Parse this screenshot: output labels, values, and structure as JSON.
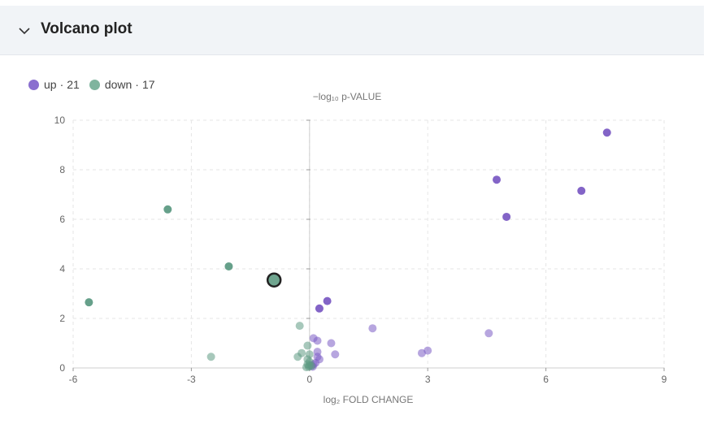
{
  "panel": {
    "title": "Volcano plot",
    "toggle_icon": "chevron-down-icon"
  },
  "legend": [
    {
      "name": "up",
      "count": "21",
      "color": "#8a6fcf"
    },
    {
      "name": "down",
      "count": "17",
      "color": "#6fa58f"
    }
  ],
  "chart_data": {
    "type": "scatter",
    "ylabel": "−log₁₀ p-VALUE",
    "xlabel": "log₂ FOLD CHANGE",
    "xlim": [
      -6,
      9
    ],
    "ylim": [
      0,
      10
    ],
    "xticks": [
      -6,
      -3,
      0,
      3,
      6,
      9
    ],
    "yticks": [
      0,
      2,
      4,
      6,
      8,
      10
    ],
    "grid": true,
    "legend_position": "top-left",
    "highlighted_point": {
      "x": -0.9,
      "y": 3.55
    },
    "series": [
      {
        "name": "up",
        "color": "#7c5cc4",
        "points": [
          {
            "x": 7.55,
            "y": 9.5,
            "sig": true
          },
          {
            "x": 4.75,
            "y": 7.6,
            "sig": true
          },
          {
            "x": 6.9,
            "y": 7.15,
            "sig": true
          },
          {
            "x": 5.0,
            "y": 6.1,
            "sig": true
          },
          {
            "x": 0.45,
            "y": 2.7,
            "sig": true
          },
          {
            "x": 0.25,
            "y": 2.4,
            "sig": true
          },
          {
            "x": 1.6,
            "y": 1.6,
            "sig": false
          },
          {
            "x": 4.55,
            "y": 1.4,
            "sig": false
          },
          {
            "x": 0.1,
            "y": 1.2,
            "sig": false
          },
          {
            "x": 0.2,
            "y": 1.1,
            "sig": false
          },
          {
            "x": 0.55,
            "y": 1.0,
            "sig": false
          },
          {
            "x": 3.0,
            "y": 0.7,
            "sig": false
          },
          {
            "x": 2.85,
            "y": 0.6,
            "sig": false
          },
          {
            "x": 0.2,
            "y": 0.65,
            "sig": false
          },
          {
            "x": 0.65,
            "y": 0.55,
            "sig": false
          },
          {
            "x": 0.2,
            "y": 0.45,
            "sig": false
          },
          {
            "x": 0.25,
            "y": 0.35,
            "sig": false
          },
          {
            "x": 0.15,
            "y": 0.2,
            "sig": false
          },
          {
            "x": 0.1,
            "y": 0.15,
            "sig": false
          },
          {
            "x": 0.05,
            "y": 0.1,
            "sig": false
          },
          {
            "x": 0.08,
            "y": 0.05,
            "sig": false
          }
        ]
      },
      {
        "name": "down",
        "color": "#5e9b84",
        "points": [
          {
            "x": -3.6,
            "y": 6.4,
            "sig": true
          },
          {
            "x": -2.05,
            "y": 4.1,
            "sig": true
          },
          {
            "x": -0.9,
            "y": 3.55,
            "sig": true
          },
          {
            "x": -5.6,
            "y": 2.65,
            "sig": true
          },
          {
            "x": -0.25,
            "y": 1.7,
            "sig": false
          },
          {
            "x": -2.5,
            "y": 0.45,
            "sig": false
          },
          {
            "x": -0.05,
            "y": 0.9,
            "sig": false
          },
          {
            "x": -0.2,
            "y": 0.6,
            "sig": false
          },
          {
            "x": -0.3,
            "y": 0.45,
            "sig": false
          },
          {
            "x": 0.0,
            "y": 0.55,
            "sig": false
          },
          {
            "x": -0.05,
            "y": 0.35,
            "sig": false
          },
          {
            "x": 0.0,
            "y": 0.25,
            "sig": false
          },
          {
            "x": -0.05,
            "y": 0.15,
            "sig": false
          },
          {
            "x": 0.0,
            "y": 0.1,
            "sig": false
          },
          {
            "x": 0.05,
            "y": 0.08,
            "sig": false
          },
          {
            "x": -0.02,
            "y": 0.05,
            "sig": false
          },
          {
            "x": -0.08,
            "y": 0.03,
            "sig": false
          }
        ]
      }
    ]
  }
}
